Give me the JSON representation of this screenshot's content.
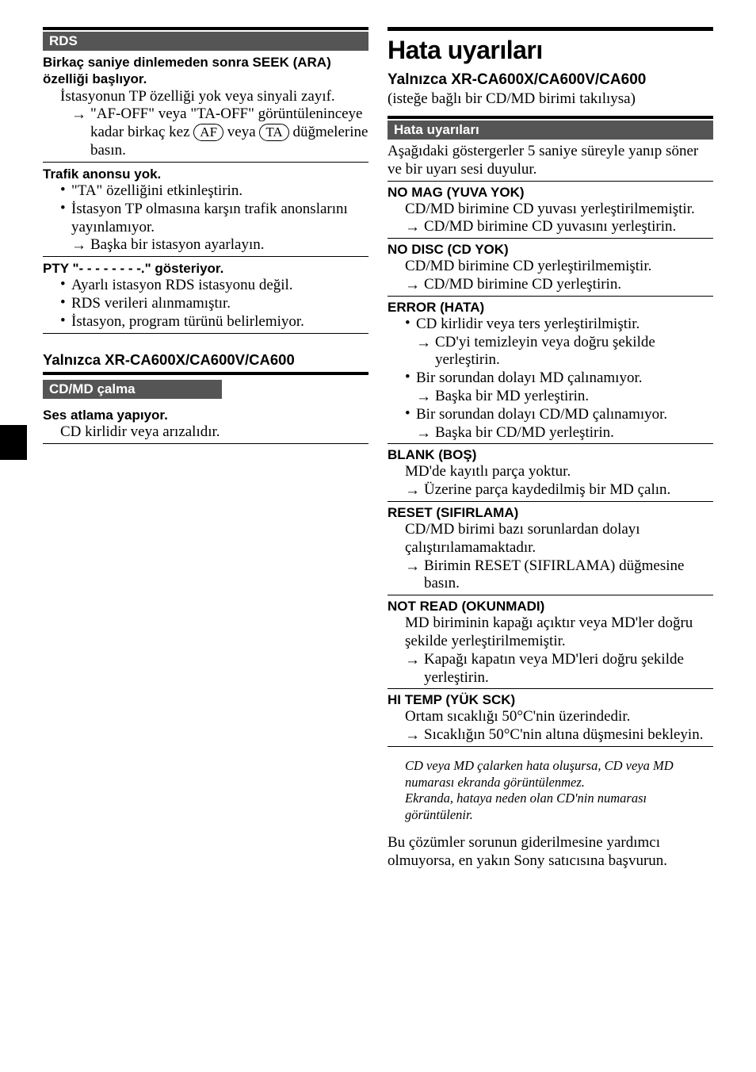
{
  "left": {
    "rds": {
      "heading": "RDS",
      "seek": {
        "symptom": "Birkaç saniye dinlemeden sonra SEEK (ARA) özelliği başlıyor.",
        "cause": "İstasyonun TP özelliği yok veya sinyali zayıf.",
        "remedy_pre": "\"AF-OFF\" veya \"TA-OFF\" görüntüleninceye kadar birkaç kez ",
        "remedy_post": " düğmelerine basın.",
        "af_label": "AF",
        "ta_label": "TA",
        "or": " veya "
      },
      "trafik": {
        "symptom": "Trafik anonsu yok.",
        "b1": "\"TA\" özelliğini etkinleştirin.",
        "b2a": "İstasyon TP olmasına karşın trafik anonslarını yayınlamıyor.",
        "b2_action": "Başka bir istasyon ayarlayın."
      },
      "pty": {
        "symptom": "PTY \"- - - - - - - -.\" gösteriyor.",
        "b1": "Ayarlı istasyon RDS istasyonu değil.",
        "b2": "RDS verileri alınmamıştır.",
        "b3": "İstasyon, program türünü belirlemiyor."
      }
    },
    "cdmd": {
      "only": "Yalnızca XR-CA600X/CA600V/CA600",
      "heading": "CD/MD çalma",
      "skip": {
        "symptom": "Ses atlama yapıyor.",
        "cause": "CD kirlidir veya arızalıdır."
      }
    }
  },
  "right": {
    "title": "Hata uyarıları",
    "only": "Yalnızca XR-CA600X/CA600V/CA600",
    "only_sub": "(isteğe bağlı bir CD/MD birimi takılıysa)",
    "heading": "Hata uyarıları",
    "intro": "Aşağıdaki göstergerler 5 saniye süreyle yanıp söner ve bir uyarı sesi duyulur.",
    "errors": {
      "nomag": {
        "h": "NO MAG (YUVA YOK)",
        "cause": "CD/MD birimine CD yuvası yerleştirilmemiştir.",
        "action": "CD/MD birimine CD yuvasını yerleştirin."
      },
      "nodisc": {
        "h": "NO DISC (CD YOK)",
        "cause": "CD/MD birimine CD yerleştirilmemiştir.",
        "action": "CD/MD birimine CD yerleştirin."
      },
      "error": {
        "h": "ERROR   (HATA)",
        "b1": "CD kirlidir veya ters yerleştirilmiştir.",
        "b1a": "CD'yi temizleyin veya doğru şekilde yerleştirin.",
        "b2": "Bir sorundan dolayı MD çalınamıyor.",
        "b2a": "Başka bir MD yerleştirin.",
        "b3": "Bir sorundan dolayı CD/MD çalınamıyor.",
        "b3a": "Başka bir CD/MD yerleştirin."
      },
      "blank": {
        "h": "BLANK   (BOŞ)",
        "cause": "MD'de kayıtlı parça yoktur.",
        "action": "Üzerine parça kaydedilmiş bir MD çalın."
      },
      "reset": {
        "h": "RESET (SIFIRLAMA)",
        "cause": "CD/MD birimi bazı sorunlardan dolayı çalıştırılamamaktadır.",
        "action": "Birimin RESET (SIFIRLAMA) düğmesine basın."
      },
      "notread": {
        "h": "NOT READ (OKUNMADI)",
        "cause": "MD biriminin kapağı açıktır veya MD'ler doğru şekilde yerleştirilmemiştir.",
        "action": "Kapağı kapatın veya MD'leri doğru şekilde yerleştirin."
      },
      "hitemp": {
        "h": "HI TEMP (YÜK SCK)",
        "cause": "Ortam sıcaklığı 50°C'nin üzerindedir.",
        "action": "Sıcaklığın 50°C'nin altına düşmesini bekleyin."
      }
    },
    "footnote": "CD veya MD çalarken hata oluşursa, CD veya MD numarası ekranda görüntülenmez.\nEkranda, hataya neden olan CD'nin numarası görüntülenir.",
    "closing": "Bu çözümler sorunun giderilmesine yardımcı olmuyorsa, en yakın Sony satıcısına başvurun."
  }
}
